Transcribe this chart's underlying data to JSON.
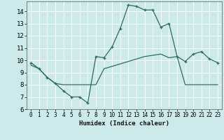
{
  "title": "",
  "xlabel": "Humidex (Indice chaleur)",
  "xlim": [
    -0.5,
    23.5
  ],
  "ylim": [
    6,
    14.8
  ],
  "yticks": [
    6,
    7,
    8,
    9,
    10,
    11,
    12,
    13,
    14
  ],
  "xticks": [
    0,
    1,
    2,
    3,
    4,
    5,
    6,
    7,
    8,
    9,
    10,
    11,
    12,
    13,
    14,
    15,
    16,
    17,
    18,
    19,
    20,
    21,
    22,
    23
  ],
  "line1_x": [
    0,
    1,
    2,
    3,
    4,
    5,
    6,
    7,
    8,
    9,
    10,
    11,
    12,
    13,
    14,
    15,
    16,
    17,
    18,
    19,
    20,
    21,
    22,
    23
  ],
  "line1_y": [
    9.8,
    9.3,
    8.6,
    8.1,
    7.5,
    7.0,
    7.0,
    6.5,
    10.3,
    10.2,
    11.1,
    12.6,
    14.5,
    14.4,
    14.1,
    14.1,
    12.7,
    13.0,
    10.3,
    9.9,
    10.5,
    10.7,
    10.1,
    9.8
  ],
  "line2_x": [
    0,
    1,
    2,
    3,
    4,
    5,
    6,
    7,
    8,
    9,
    10,
    11,
    12,
    13,
    14,
    15,
    16,
    17,
    18,
    19,
    20,
    21,
    22,
    23
  ],
  "line2_y": [
    9.6,
    9.3,
    8.6,
    8.1,
    8.0,
    8.0,
    8.0,
    8.0,
    8.0,
    9.3,
    9.5,
    9.7,
    9.9,
    10.1,
    10.3,
    10.4,
    10.5,
    10.2,
    10.3,
    8.0,
    8.0,
    8.0,
    8.0,
    8.0
  ],
  "line_color": "#2e6b5e",
  "bg_color": "#cceaea",
  "grid_color": "#ffffff"
}
